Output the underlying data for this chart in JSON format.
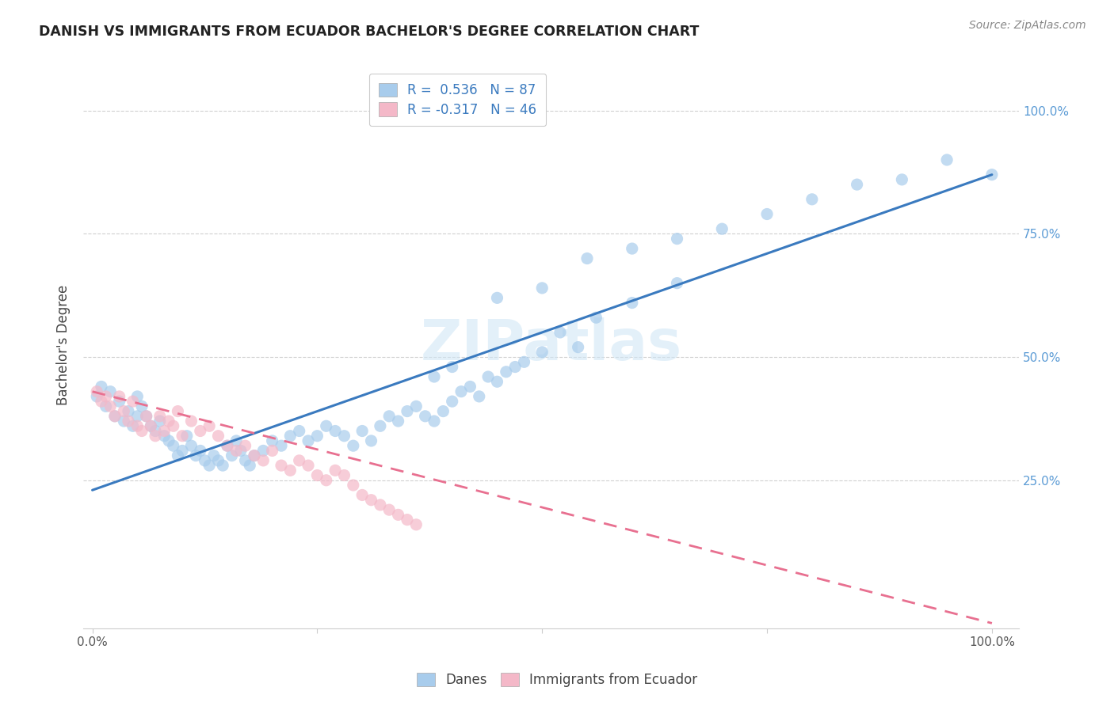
{
  "title": "DANISH VS IMMIGRANTS FROM ECUADOR BACHELOR'S DEGREE CORRELATION CHART",
  "source": "Source: ZipAtlas.com",
  "ylabel": "Bachelor's Degree",
  "watermark": "ZIPatlas",
  "legend_r1": "R =  0.536",
  "legend_n1": "N = 87",
  "legend_r2": "R = -0.317",
  "legend_n2": "N = 46",
  "blue_color": "#a8ccec",
  "pink_color": "#f4b8c8",
  "blue_line_color": "#3a7abf",
  "pink_line_color": "#e87090",
  "danes_x": [
    0.005,
    0.01,
    0.015,
    0.02,
    0.025,
    0.03,
    0.035,
    0.04,
    0.045,
    0.05,
    0.05,
    0.055,
    0.06,
    0.065,
    0.07,
    0.075,
    0.08,
    0.085,
    0.09,
    0.095,
    0.1,
    0.105,
    0.11,
    0.115,
    0.12,
    0.125,
    0.13,
    0.135,
    0.14,
    0.145,
    0.15,
    0.155,
    0.16,
    0.165,
    0.17,
    0.175,
    0.18,
    0.19,
    0.2,
    0.21,
    0.22,
    0.23,
    0.24,
    0.25,
    0.26,
    0.27,
    0.28,
    0.29,
    0.3,
    0.31,
    0.32,
    0.33,
    0.34,
    0.35,
    0.36,
    0.37,
    0.38,
    0.39,
    0.4,
    0.41,
    0.42,
    0.43,
    0.44,
    0.45,
    0.46,
    0.47,
    0.48,
    0.5,
    0.52,
    0.54,
    0.56,
    0.6,
    0.65,
    0.38,
    0.4,
    0.45,
    0.5,
    0.55,
    0.6,
    0.65,
    0.7,
    0.75,
    0.8,
    0.85,
    0.9,
    0.95,
    1.0
  ],
  "danes_y": [
    0.42,
    0.44,
    0.4,
    0.43,
    0.38,
    0.41,
    0.37,
    0.39,
    0.36,
    0.38,
    0.42,
    0.4,
    0.38,
    0.36,
    0.35,
    0.37,
    0.34,
    0.33,
    0.32,
    0.3,
    0.31,
    0.34,
    0.32,
    0.3,
    0.31,
    0.29,
    0.28,
    0.3,
    0.29,
    0.28,
    0.32,
    0.3,
    0.33,
    0.31,
    0.29,
    0.28,
    0.3,
    0.31,
    0.33,
    0.32,
    0.34,
    0.35,
    0.33,
    0.34,
    0.36,
    0.35,
    0.34,
    0.32,
    0.35,
    0.33,
    0.36,
    0.38,
    0.37,
    0.39,
    0.4,
    0.38,
    0.37,
    0.39,
    0.41,
    0.43,
    0.44,
    0.42,
    0.46,
    0.45,
    0.47,
    0.48,
    0.49,
    0.51,
    0.55,
    0.52,
    0.58,
    0.61,
    0.65,
    0.46,
    0.48,
    0.62,
    0.64,
    0.7,
    0.72,
    0.74,
    0.76,
    0.79,
    0.82,
    0.85,
    0.86,
    0.9,
    0.87
  ],
  "ecuador_x": [
    0.005,
    0.01,
    0.015,
    0.02,
    0.025,
    0.03,
    0.035,
    0.04,
    0.045,
    0.05,
    0.055,
    0.06,
    0.065,
    0.07,
    0.075,
    0.08,
    0.085,
    0.09,
    0.095,
    0.1,
    0.11,
    0.12,
    0.13,
    0.14,
    0.15,
    0.16,
    0.17,
    0.18,
    0.19,
    0.2,
    0.21,
    0.22,
    0.23,
    0.24,
    0.25,
    0.26,
    0.27,
    0.28,
    0.29,
    0.3,
    0.31,
    0.32,
    0.33,
    0.34,
    0.35,
    0.36
  ],
  "ecuador_y": [
    0.43,
    0.41,
    0.42,
    0.4,
    0.38,
    0.42,
    0.39,
    0.37,
    0.41,
    0.36,
    0.35,
    0.38,
    0.36,
    0.34,
    0.38,
    0.35,
    0.37,
    0.36,
    0.39,
    0.34,
    0.37,
    0.35,
    0.36,
    0.34,
    0.32,
    0.31,
    0.32,
    0.3,
    0.29,
    0.31,
    0.28,
    0.27,
    0.29,
    0.28,
    0.26,
    0.25,
    0.27,
    0.26,
    0.24,
    0.22,
    0.21,
    0.2,
    0.19,
    0.18,
    0.17,
    0.16
  ],
  "blue_line_x0": 0.0,
  "blue_line_y0": 0.23,
  "blue_line_x1": 1.0,
  "blue_line_y1": 0.87,
  "pink_line_x0": 0.0,
  "pink_line_y0": 0.43,
  "pink_line_x1": 1.0,
  "pink_line_y1": -0.04,
  "xlim_min": -0.01,
  "xlim_max": 1.03,
  "ylim_min": -0.05,
  "ylim_max": 1.1
}
